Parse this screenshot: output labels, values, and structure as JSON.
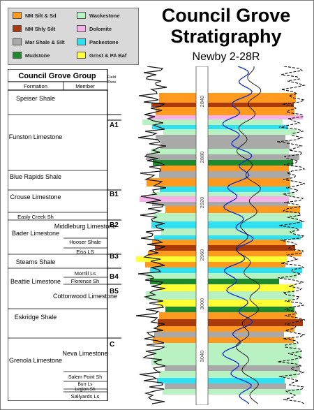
{
  "title_line1": "Council Grove",
  "title_line2": "Stratigraphy",
  "well_name": "Newby 2-28R",
  "legend": [
    {
      "label": "NM Silt & Sd",
      "color": "#ff9a1f"
    },
    {
      "label": "Wackestone",
      "color": "#b9f2c2"
    },
    {
      "label": "NM Shly Silt",
      "color": "#a83a0c"
    },
    {
      "label": "Dolomite",
      "color": "#f7b0e8"
    },
    {
      "label": "Mar Shale & Silt",
      "color": "#a9a9a9"
    },
    {
      "label": "Packestone",
      "color": "#2fe0f0"
    },
    {
      "label": "Mudstone",
      "color": "#1e8a2e"
    },
    {
      "label": "Grnst & PA Baf",
      "color": "#ffff33"
    }
  ],
  "table": {
    "header": "Council Grove Group",
    "col_formation": "Formation",
    "col_member": "Member",
    "col_zone": "Field Zone",
    "formations": [
      "Speiser Shale",
      "Funston Limestone",
      "Blue Rapids Shale",
      "Crouse Limestone",
      "Easly Creek Sh",
      "Bader Limestone",
      "Stearns Shale",
      "Beattie Limestone",
      "Eskridge Shale",
      "Grenola Limestone"
    ],
    "members": [
      "Middleburg Limestone",
      "Hooser Shale",
      "Eiss LS",
      "Morrill Ls",
      "Florence Sh",
      "Cottonwood Limestone",
      "Neva Limestone",
      "Salem Point Sh",
      "Burr Ls",
      "Legion Sh",
      "Sallyards Ls"
    ],
    "zones": [
      "A1",
      "B1",
      "B2",
      "B3",
      "B4",
      "B5",
      "C"
    ]
  },
  "depth_labels": [
    "2840",
    "2880",
    "2920",
    "2960",
    "3000",
    "3040"
  ]
}
